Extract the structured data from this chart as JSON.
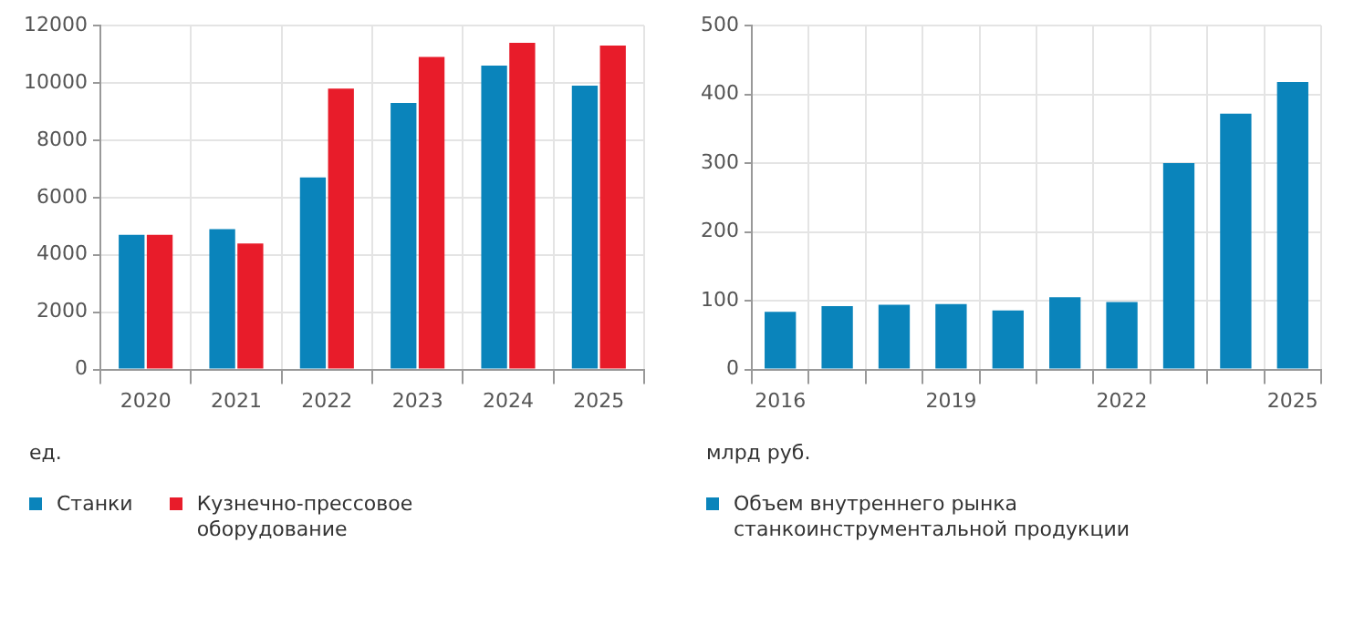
{
  "chart_data": [
    {
      "type": "bar",
      "ylabel": "ед.",
      "categories": [
        "2020",
        "2021",
        "2022",
        "2023",
        "2024",
        "2025"
      ],
      "series": [
        {
          "name": "Станки",
          "color": "#0a84bb",
          "values": [
            4700,
            4900,
            6700,
            9300,
            10600,
            9900
          ]
        },
        {
          "name": "Кузнечно-прессовое оборудование",
          "color": "#e81c2a",
          "values": [
            4700,
            4400,
            9800,
            10900,
            11400,
            11300
          ]
        }
      ],
      "ylim": [
        0,
        12000
      ],
      "yticks": [
        0,
        2000,
        4000,
        6000,
        8000,
        10000,
        12000
      ],
      "grid": true,
      "legend": "bottom"
    },
    {
      "type": "bar",
      "ylabel": "млрд руб.",
      "categories": [
        "2016",
        null,
        null,
        "2019",
        null,
        null,
        "2022",
        null,
        null,
        "2025"
      ],
      "series": [
        {
          "name": "Объем внутреннего рынка станкоинструментальной продукции",
          "color": "#0a84bb",
          "values": [
            84,
            92,
            94,
            95,
            86,
            105,
            98,
            300,
            372,
            418
          ]
        }
      ],
      "ylim": [
        0,
        500
      ],
      "yticks": [
        0,
        100,
        200,
        300,
        400,
        500
      ],
      "grid": true,
      "legend": "bottom"
    }
  ]
}
